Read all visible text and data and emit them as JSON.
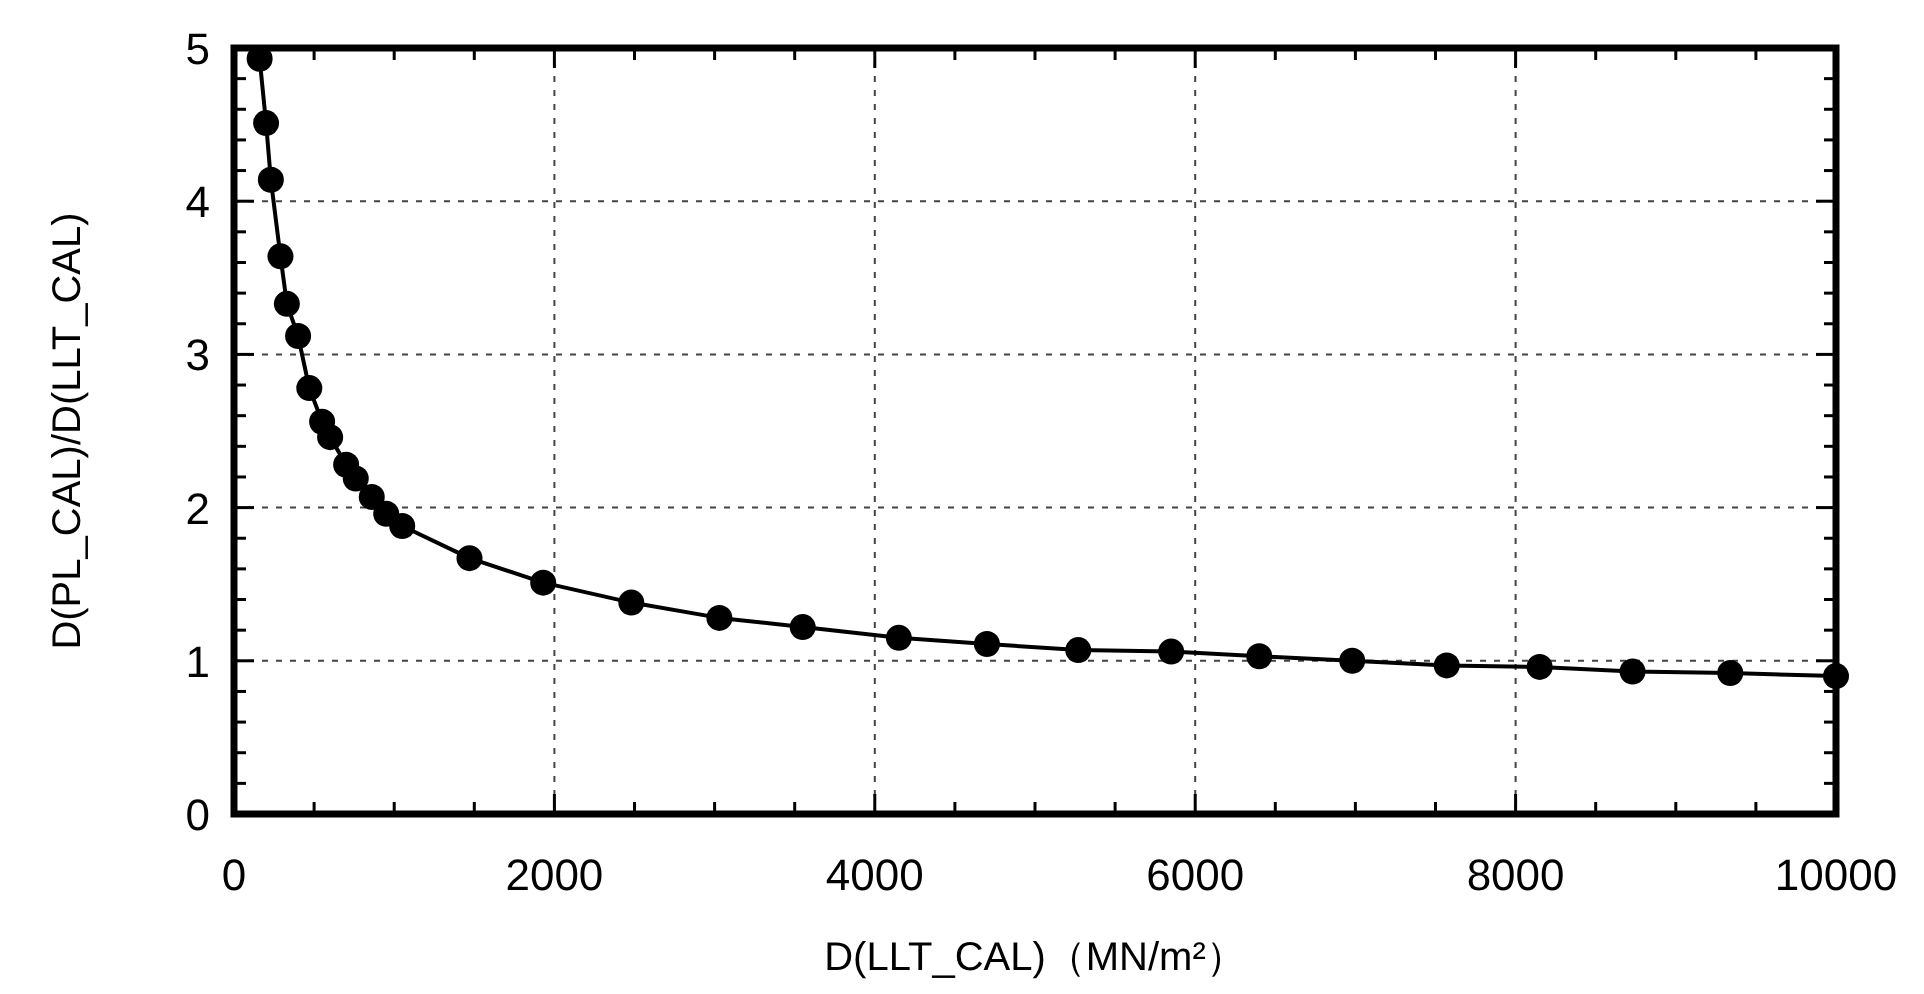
{
  "chart_data": {
    "type": "line",
    "xlabel": "D(LLT_CAL)（MN/m²）",
    "ylabel": "D(PL_CAL)/D(LLT_CAL)",
    "xlim": [
      0,
      10000
    ],
    "ylim": [
      0,
      5
    ],
    "xticks": [
      0,
      {
        "value": 500,
        "label": null
      },
      2000,
      {
        "value": 1000,
        "label": null
      },
      {
        "value": 1500,
        "label": null
      },
      {
        "value": 2500,
        "label": null
      },
      {
        "value": 3000,
        "label": null
      },
      {
        "value": 3500,
        "label": null
      },
      4000,
      {
        "value": 4500,
        "label": null
      },
      {
        "value": 5000,
        "label": null
      },
      {
        "value": 5500,
        "label": null
      },
      6000,
      {
        "value": 6500,
        "label": null
      },
      {
        "value": 7000,
        "label": null
      },
      {
        "value": 7500,
        "label": null
      },
      8000,
      {
        "value": 8500,
        "label": null
      },
      {
        "value": 9000,
        "label": null
      },
      {
        "value": 9500,
        "label": null
      },
      10000
    ],
    "yticks": [
      0,
      {
        "value": 0.2,
        "label": null
      },
      {
        "value": 0.4,
        "label": null
      },
      {
        "value": 0.6,
        "label": null
      },
      {
        "value": 0.8,
        "label": null
      },
      1,
      {
        "value": 1.2,
        "label": null
      },
      {
        "value": 1.4,
        "label": null
      },
      {
        "value": 1.6,
        "label": null
      },
      {
        "value": 1.8,
        "label": null
      },
      2,
      {
        "value": 2.2,
        "label": null
      },
      {
        "value": 2.4,
        "label": null
      },
      {
        "value": 2.6,
        "label": null
      },
      {
        "value": 2.8,
        "label": null
      },
      3,
      {
        "value": 3.2,
        "label": null
      },
      {
        "value": 3.4,
        "label": null
      },
      {
        "value": 3.6,
        "label": null
      },
      {
        "value": 3.8,
        "label": null
      },
      4,
      {
        "value": 4.2,
        "label": null
      },
      {
        "value": 4.4,
        "label": null
      },
      {
        "value": 4.6,
        "label": null
      },
      {
        "value": 4.8,
        "label": null
      },
      5
    ],
    "grid": true,
    "marker": "circle",
    "line_style": "solid",
    "series": [
      {
        "color": "#000000",
        "x": [
          160,
          200,
          230,
          290,
          330,
          400,
          470,
          550,
          600,
          700,
          760,
          860,
          950,
          1050,
          1470,
          1930,
          2480,
          3030,
          3550,
          4150,
          4700,
          5270,
          5850,
          6400,
          6980,
          7570,
          8150,
          8730,
          9340,
          10000
        ],
        "values": [
          4.93,
          4.51,
          4.14,
          3.64,
          3.33,
          3.12,
          2.78,
          2.56,
          2.46,
          2.28,
          2.19,
          2.07,
          1.96,
          1.88,
          1.67,
          1.51,
          1.38,
          1.28,
          1.22,
          1.15,
          1.11,
          1.07,
          1.06,
          1.03,
          1.0,
          0.97,
          0.96,
          0.93,
          0.92,
          0.9
        ]
      }
    ]
  }
}
